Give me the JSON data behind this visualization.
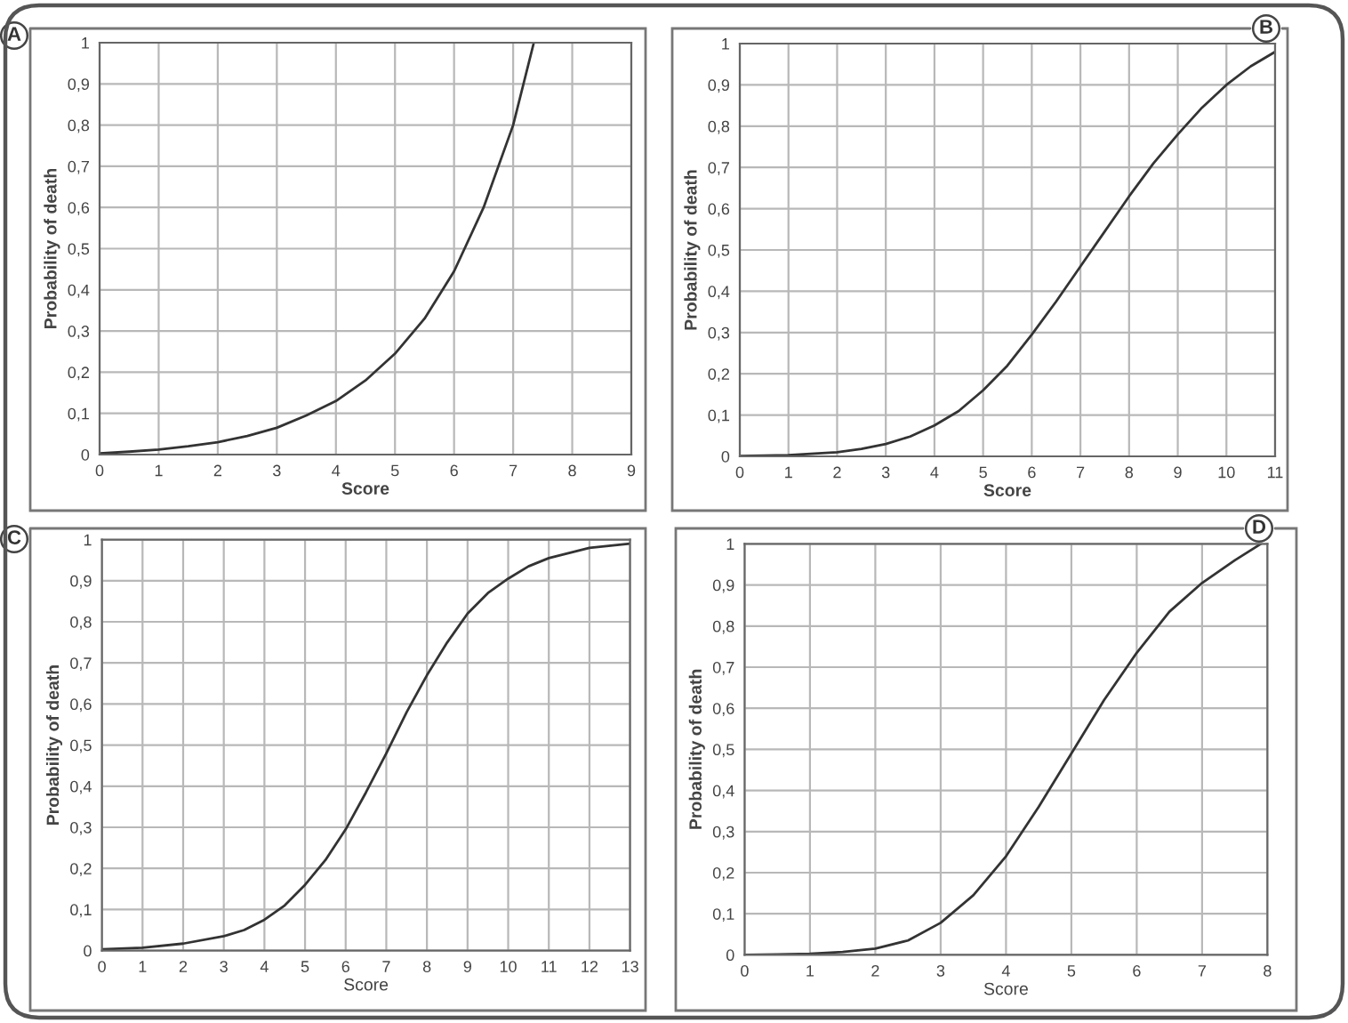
{
  "chart_data": [
    {
      "type": "line",
      "title": "A",
      "xlabel": "Score",
      "ylabel": "Probability of death",
      "xlim": [
        0,
        9
      ],
      "ylim": [
        0,
        1
      ],
      "xticks": [
        0,
        1,
        2,
        3,
        4,
        5,
        6,
        7,
        8,
        9
      ],
      "yticks": [
        0,
        {
          "value": 0.1,
          "label": "0,1"
        },
        {
          "value": 0.2,
          "label": "0,2"
        },
        {
          "value": 0.3,
          "label": "0,3"
        },
        {
          "value": 0.4,
          "label": "0,4"
        },
        {
          "value": 0.5,
          "label": "0,5"
        },
        {
          "value": 0.6,
          "label": "0,6"
        },
        {
          "value": 0.7,
          "label": "0,7"
        },
        {
          "value": 0.8,
          "label": "0,8"
        },
        {
          "value": 0.9,
          "label": "0,9"
        },
        1
      ],
      "grid": true,
      "series": [
        {
          "color": "#333333",
          "x": [
            0,
            0.5,
            1,
            1.5,
            2,
            2.5,
            3,
            3.5,
            4,
            4.5,
            5,
            5.5,
            6,
            6.5,
            7,
            7.35
          ],
          "values": [
            0.003,
            0.007,
            0.012,
            0.02,
            0.03,
            0.045,
            0.065,
            0.095,
            0.13,
            0.18,
            0.245,
            0.33,
            0.445,
            0.6,
            0.8,
            1.0
          ]
        }
      ]
    },
    {
      "type": "line",
      "title": "B",
      "xlabel": "Score",
      "ylabel": "Probability of death",
      "xlim": [
        0,
        11
      ],
      "ylim": [
        0,
        1
      ],
      "xticks": [
        0,
        1,
        2,
        3,
        4,
        5,
        6,
        7,
        8,
        9,
        10,
        11
      ],
      "yticks": [
        0,
        {
          "value": 0.1,
          "label": "0,1"
        },
        {
          "value": 0.2,
          "label": "0,2"
        },
        {
          "value": 0.3,
          "label": "0,3"
        },
        {
          "value": 0.4,
          "label": "0,4"
        },
        {
          "value": 0.5,
          "label": "0,5"
        },
        {
          "value": 0.6,
          "label": "0,6"
        },
        {
          "value": 0.7,
          "label": "0,7"
        },
        {
          "value": 0.8,
          "label": "0,8"
        },
        {
          "value": 0.9,
          "label": "0,9"
        },
        1
      ],
      "grid": true,
      "series": [
        {
          "color": "#333333",
          "x": [
            0,
            1,
            2,
            2.5,
            3,
            3.5,
            4,
            4.5,
            5,
            5.5,
            6,
            6.5,
            7,
            7.5,
            8,
            8.5,
            9,
            9.5,
            10,
            10.5,
            11
          ],
          "values": [
            0.001,
            0.003,
            0.01,
            0.018,
            0.03,
            0.048,
            0.075,
            0.11,
            0.16,
            0.22,
            0.295,
            0.375,
            0.46,
            0.545,
            0.63,
            0.71,
            0.78,
            0.845,
            0.9,
            0.945,
            0.98
          ]
        }
      ]
    },
    {
      "type": "line",
      "title": "C",
      "xlabel": "Score",
      "ylabel": "Probability of death",
      "xlim": [
        0,
        13
      ],
      "ylim": [
        0,
        1
      ],
      "xticks": [
        0,
        1,
        2,
        3,
        4,
        5,
        6,
        7,
        8,
        9,
        10,
        11,
        12,
        13
      ],
      "yticks": [
        0,
        {
          "value": 0.1,
          "label": "0,1"
        },
        {
          "value": 0.2,
          "label": "0,2"
        },
        {
          "value": 0.3,
          "label": "0,3"
        },
        {
          "value": 0.4,
          "label": "0,4"
        },
        {
          "value": 0.5,
          "label": "0,5"
        },
        {
          "value": 0.6,
          "label": "0,6"
        },
        {
          "value": 0.7,
          "label": "0,7"
        },
        {
          "value": 0.8,
          "label": "0,8"
        },
        {
          "value": 0.9,
          "label": "0,9"
        },
        1
      ],
      "grid": true,
      "series": [
        {
          "color": "#333333",
          "x": [
            0,
            1,
            2,
            3,
            3.5,
            4,
            4.5,
            5,
            5.5,
            6,
            6.5,
            7,
            7.5,
            8,
            8.5,
            9,
            9.5,
            10,
            10.5,
            11,
            12,
            13
          ],
          "values": [
            0.003,
            0.007,
            0.017,
            0.035,
            0.05,
            0.075,
            0.11,
            0.16,
            0.22,
            0.295,
            0.385,
            0.48,
            0.58,
            0.67,
            0.75,
            0.82,
            0.87,
            0.905,
            0.935,
            0.955,
            0.98,
            0.99
          ]
        }
      ]
    },
    {
      "type": "line",
      "title": "D",
      "xlabel": "Score",
      "ylabel": "Probability of death",
      "xlim": [
        0,
        8
      ],
      "ylim": [
        0,
        1
      ],
      "xticks": [
        0,
        1,
        2,
        3,
        4,
        5,
        6,
        7,
        8
      ],
      "yticks": [
        0,
        {
          "value": 0.1,
          "label": "0,1"
        },
        {
          "value": 0.2,
          "label": "0,2"
        },
        {
          "value": 0.3,
          "label": "0,3"
        },
        {
          "value": 0.4,
          "label": "0,4"
        },
        {
          "value": 0.5,
          "label": "0,5"
        },
        {
          "value": 0.6,
          "label": "0,6"
        },
        {
          "value": 0.7,
          "label": "0,7"
        },
        {
          "value": 0.8,
          "label": "0,8"
        },
        {
          "value": 0.9,
          "label": "0,9"
        },
        1
      ],
      "grid": true,
      "series": [
        {
          "color": "#333333",
          "x": [
            0,
            0.5,
            1,
            1.5,
            2,
            2.5,
            3,
            3.5,
            4,
            4.5,
            5,
            5.5,
            6,
            6.5,
            7,
            7.5,
            7.9
          ],
          "values": [
            0.0,
            0.001,
            0.003,
            0.007,
            0.015,
            0.035,
            0.078,
            0.145,
            0.24,
            0.36,
            0.49,
            0.62,
            0.735,
            0.835,
            0.905,
            0.96,
            1.0
          ]
        }
      ]
    }
  ]
}
